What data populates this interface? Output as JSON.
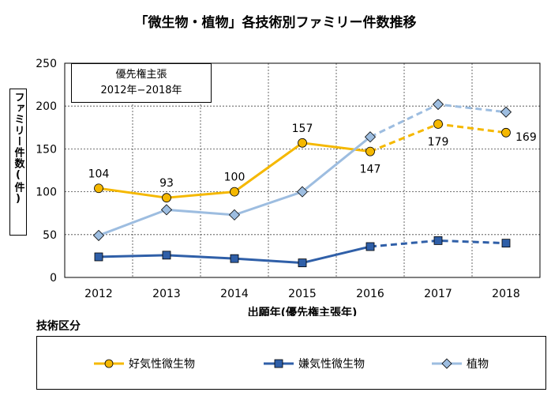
{
  "chart_data": {
    "type": "line",
    "title": "「微生物・植物」各技術別ファミリー件数推移",
    "xlabel": "出願年(優先権主張年)",
    "ylabel": "ファミリー件数(件)",
    "ylim": [
      0,
      250
    ],
    "yticks": [
      0,
      50,
      100,
      150,
      200,
      250
    ],
    "grid": true,
    "legend_position": "bottom",
    "legend_title": "技術区分",
    "annotation": {
      "line1": "優先権主張",
      "line2": "2012年−2018年"
    },
    "categories": [
      "2012",
      "2013",
      "2014",
      "2015",
      "2016",
      "2017",
      "2018"
    ],
    "dashed_from_index": 4,
    "series": [
      {
        "name": "好気性微生物",
        "color": "#f5b800",
        "marker": "circle",
        "values": [
          104,
          93,
          100,
          157,
          147,
          179,
          169
        ],
        "data_labels": [
          "104",
          "93",
          "100",
          "157",
          "147",
          "179",
          "169"
        ]
      },
      {
        "name": "嫌気性微生物",
        "color": "#2f5fa8",
        "marker": "square",
        "values": [
          24,
          26,
          22,
          17,
          36,
          43,
          40
        ]
      },
      {
        "name": "植物",
        "color": "#9dbde0",
        "marker": "diamond",
        "values": [
          49,
          79,
          73,
          100,
          164,
          202,
          193
        ]
      }
    ]
  }
}
